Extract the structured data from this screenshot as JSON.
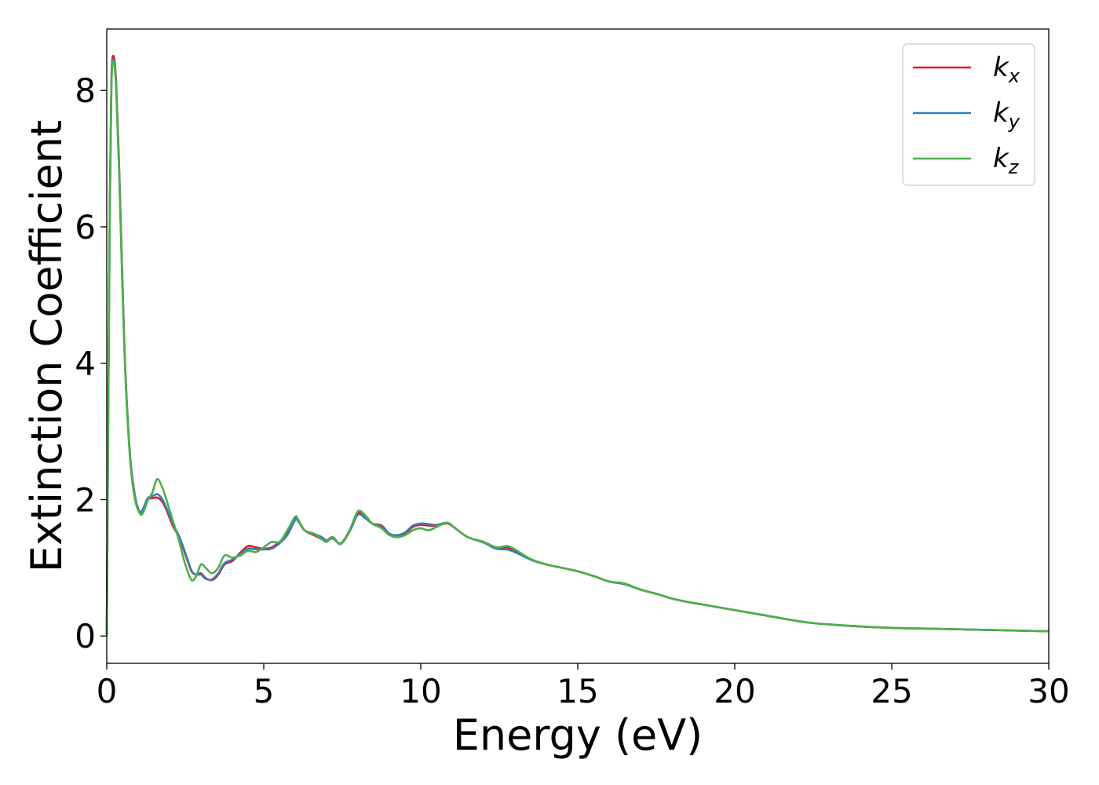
{
  "chart_data": {
    "type": "line",
    "xlabel": "Energy (eV)",
    "ylabel": "Extinction Coefficient",
    "xlim": [
      0,
      30
    ],
    "ylim": [
      -0.4,
      8.9
    ],
    "xticks": [
      "0",
      "5",
      "10",
      "15",
      "20",
      "25",
      "30"
    ],
    "yticks": [
      "0",
      "2",
      "4",
      "6",
      "8"
    ],
    "grid": false,
    "legend_position": "top-right",
    "colors": {
      "kx": "#e41a1c",
      "ky": "#377eb8",
      "kz": "#4daf4a"
    },
    "series": [
      {
        "name": "k_x",
        "legend_base": "k",
        "legend_sub": "x",
        "color": "#e41a1c",
        "x": [
          0,
          0.05,
          0.1,
          0.15,
          0.22,
          0.3,
          0.4,
          0.5,
          0.6,
          0.75,
          0.9,
          1.05,
          1.15,
          1.3,
          1.45,
          1.6,
          1.75,
          1.9,
          2.1,
          2.3,
          2.5,
          2.7,
          2.85,
          3.0,
          3.15,
          3.35,
          3.55,
          3.75,
          4.0,
          4.25,
          4.5,
          4.75,
          5.0,
          5.25,
          5.5,
          5.75,
          6.0,
          6.1,
          6.3,
          6.6,
          6.85,
          7.0,
          7.2,
          7.45,
          7.75,
          8.0,
          8.25,
          8.45,
          8.75,
          9.0,
          9.25,
          9.5,
          9.75,
          10.0,
          10.25,
          10.5,
          10.85,
          11.1,
          11.5,
          12.0,
          12.4,
          12.75,
          13.0,
          13.5,
          14.0,
          14.5,
          15.0,
          15.5,
          16.0,
          16.5,
          17.0,
          17.5,
          18.0,
          18.5,
          19.0,
          19.5,
          20.0,
          20.5,
          21.0,
          21.5,
          22.0,
          22.5,
          23.0,
          24.0,
          25.0,
          26.0,
          27.0,
          28.0,
          29.0,
          30.0
        ],
        "y": [
          0,
          3.5,
          6.5,
          8.2,
          8.5,
          8.1,
          6.8,
          5.2,
          3.8,
          2.6,
          2.05,
          1.82,
          1.85,
          2.0,
          2.02,
          2.03,
          1.98,
          1.85,
          1.62,
          1.45,
          1.2,
          0.95,
          0.9,
          0.92,
          0.85,
          0.82,
          0.9,
          1.05,
          1.1,
          1.22,
          1.32,
          1.3,
          1.28,
          1.3,
          1.38,
          1.5,
          1.72,
          1.7,
          1.55,
          1.48,
          1.42,
          1.4,
          1.45,
          1.35,
          1.55,
          1.8,
          1.75,
          1.65,
          1.62,
          1.5,
          1.47,
          1.5,
          1.6,
          1.63,
          1.62,
          1.62,
          1.65,
          1.58,
          1.45,
          1.38,
          1.3,
          1.3,
          1.25,
          1.12,
          1.05,
          1.0,
          0.95,
          0.88,
          0.8,
          0.76,
          0.68,
          0.62,
          0.55,
          0.5,
          0.46,
          0.42,
          0.38,
          0.34,
          0.3,
          0.26,
          0.22,
          0.19,
          0.17,
          0.14,
          0.12,
          0.11,
          0.1,
          0.09,
          0.08,
          0.07
        ]
      },
      {
        "name": "k_y",
        "legend_base": "k",
        "legend_sub": "y",
        "color": "#377eb8",
        "x": [
          0,
          0.05,
          0.1,
          0.15,
          0.22,
          0.3,
          0.4,
          0.5,
          0.6,
          0.75,
          0.9,
          1.05,
          1.15,
          1.3,
          1.45,
          1.6,
          1.75,
          1.9,
          2.1,
          2.3,
          2.5,
          2.7,
          2.85,
          3.0,
          3.15,
          3.35,
          3.55,
          3.75,
          4.0,
          4.25,
          4.5,
          4.75,
          5.0,
          5.25,
          5.5,
          5.75,
          6.0,
          6.1,
          6.3,
          6.6,
          6.85,
          7.0,
          7.2,
          7.45,
          7.75,
          8.0,
          8.25,
          8.45,
          8.75,
          9.0,
          9.25,
          9.5,
          9.75,
          10.0,
          10.25,
          10.5,
          10.85,
          11.1,
          11.5,
          12.0,
          12.4,
          12.75,
          13.0,
          13.5,
          14.0,
          14.5,
          15.0,
          15.5,
          16.0,
          16.5,
          17.0,
          17.5,
          18.0,
          18.5,
          19.0,
          19.5,
          20.0,
          20.5,
          21.0,
          21.5,
          22.0,
          22.5,
          23.0,
          24.0,
          25.0,
          26.0,
          27.0,
          28.0,
          29.0,
          30.0
        ],
        "y": [
          0,
          3.4,
          6.4,
          8.15,
          8.45,
          8.05,
          6.75,
          5.15,
          3.8,
          2.6,
          2.05,
          1.82,
          1.86,
          2.02,
          2.05,
          2.08,
          2.02,
          1.88,
          1.65,
          1.47,
          1.22,
          0.96,
          0.9,
          0.9,
          0.84,
          0.83,
          0.92,
          1.07,
          1.12,
          1.2,
          1.28,
          1.27,
          1.27,
          1.28,
          1.36,
          1.48,
          1.7,
          1.68,
          1.55,
          1.5,
          1.45,
          1.4,
          1.43,
          1.36,
          1.55,
          1.78,
          1.72,
          1.65,
          1.6,
          1.5,
          1.48,
          1.52,
          1.62,
          1.65,
          1.64,
          1.63,
          1.66,
          1.58,
          1.45,
          1.37,
          1.28,
          1.27,
          1.23,
          1.12,
          1.05,
          1.0,
          0.95,
          0.88,
          0.8,
          0.76,
          0.68,
          0.62,
          0.55,
          0.5,
          0.46,
          0.42,
          0.38,
          0.34,
          0.3,
          0.26,
          0.22,
          0.19,
          0.17,
          0.14,
          0.12,
          0.11,
          0.1,
          0.09,
          0.08,
          0.07
        ]
      },
      {
        "name": "k_z",
        "legend_base": "k",
        "legend_sub": "z",
        "color": "#4daf4a",
        "x": [
          0,
          0.05,
          0.1,
          0.15,
          0.22,
          0.3,
          0.4,
          0.5,
          0.6,
          0.75,
          0.9,
          1.05,
          1.15,
          1.3,
          1.45,
          1.6,
          1.75,
          1.9,
          2.1,
          2.3,
          2.5,
          2.7,
          2.85,
          3.0,
          3.15,
          3.35,
          3.55,
          3.75,
          4.0,
          4.25,
          4.5,
          4.75,
          5.0,
          5.25,
          5.5,
          5.75,
          6.0,
          6.1,
          6.3,
          6.6,
          6.85,
          7.0,
          7.2,
          7.45,
          7.75,
          8.0,
          8.25,
          8.45,
          8.75,
          9.0,
          9.25,
          9.5,
          9.75,
          10.0,
          10.25,
          10.5,
          10.85,
          11.1,
          11.5,
          12.0,
          12.4,
          12.75,
          13.0,
          13.5,
          14.0,
          14.5,
          15.0,
          15.5,
          16.0,
          16.5,
          17.0,
          17.5,
          18.0,
          18.5,
          19.0,
          19.5,
          20.0,
          20.5,
          21.0,
          21.5,
          22.0,
          22.5,
          23.0,
          24.0,
          25.0,
          26.0,
          27.0,
          28.0,
          29.0,
          30.0
        ],
        "y": [
          0,
          3.3,
          6.3,
          8.1,
          8.42,
          8.0,
          6.7,
          5.1,
          3.75,
          2.55,
          2.0,
          1.8,
          1.8,
          1.98,
          2.1,
          2.3,
          2.2,
          2.0,
          1.7,
          1.4,
          1.05,
          0.82,
          0.88,
          1.05,
          1.0,
          0.92,
          1.0,
          1.18,
          1.15,
          1.18,
          1.25,
          1.23,
          1.3,
          1.38,
          1.38,
          1.55,
          1.75,
          1.7,
          1.55,
          1.5,
          1.42,
          1.38,
          1.45,
          1.35,
          1.57,
          1.83,
          1.76,
          1.65,
          1.58,
          1.48,
          1.45,
          1.48,
          1.55,
          1.58,
          1.55,
          1.6,
          1.66,
          1.58,
          1.45,
          1.38,
          1.3,
          1.32,
          1.27,
          1.13,
          1.05,
          1.0,
          0.95,
          0.88,
          0.8,
          0.77,
          0.68,
          0.62,
          0.55,
          0.5,
          0.46,
          0.42,
          0.38,
          0.34,
          0.3,
          0.26,
          0.22,
          0.19,
          0.17,
          0.14,
          0.12,
          0.11,
          0.1,
          0.09,
          0.08,
          0.07
        ]
      }
    ]
  }
}
